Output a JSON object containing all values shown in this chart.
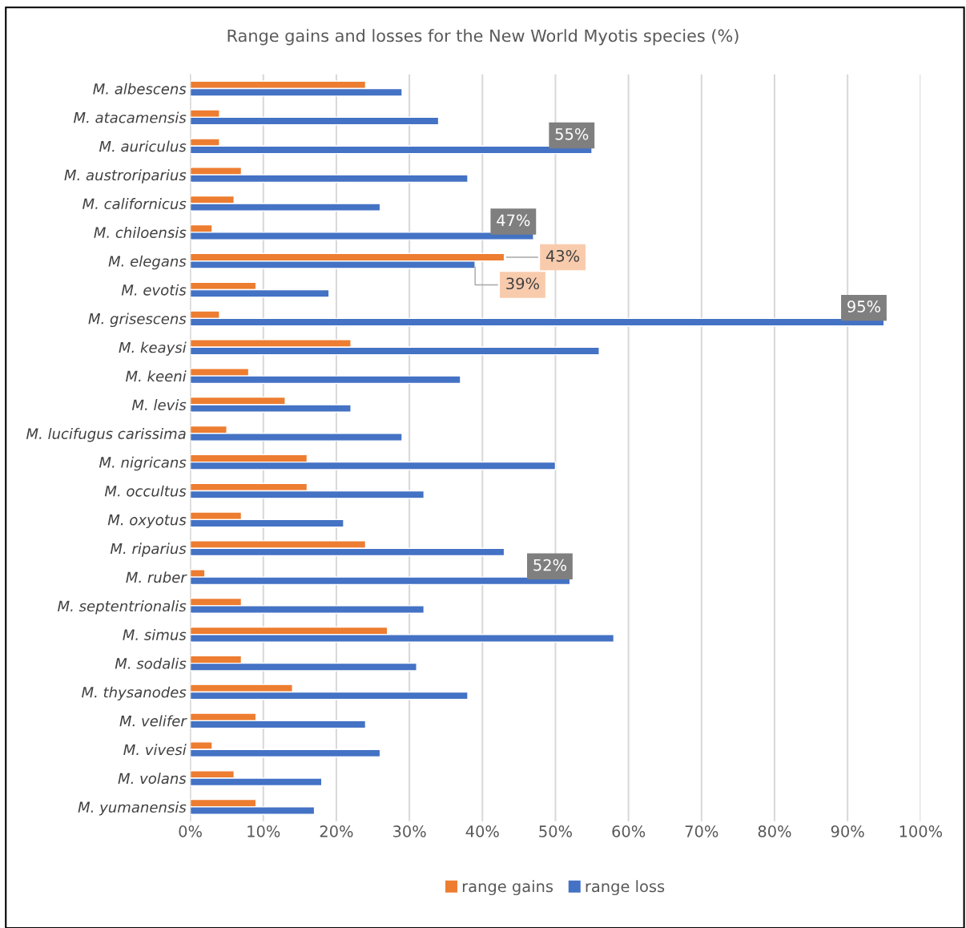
{
  "chart_data": {
    "type": "bar",
    "orientation": "horizontal",
    "title": "Range gains and losses for the New World Myotis species (%)",
    "categories": [
      "M. albescens",
      "M. atacamensis",
      "M. auriculus",
      "M. austroriparius",
      "M. californicus",
      "M. chiloensis",
      "M. elegans",
      "M. evotis",
      "M. grisescens",
      "M. keaysi",
      "M. keeni",
      "M. levis",
      "M. lucifugus carissima",
      "M. nigricans",
      "M. occultus",
      "M. oxyotus",
      "M. riparius",
      "M. ruber",
      "M. septentrionalis",
      "M. simus",
      "M. sodalis",
      "M. thysanodes",
      "M. velifer",
      "M. vivesi",
      "M. volans",
      "M. yumanensis"
    ],
    "series": [
      {
        "name": "range gains",
        "color": "#ed7d31",
        "values": [
          24,
          4,
          4,
          7,
          6,
          3,
          43,
          9,
          4,
          22,
          8,
          13,
          5,
          16,
          16,
          7,
          24,
          2,
          7,
          27,
          7,
          14,
          9,
          3,
          6,
          9
        ],
        "value_labels": [
          null,
          null,
          null,
          null,
          null,
          null,
          "43%",
          null,
          null,
          null,
          null,
          null,
          null,
          null,
          null,
          null,
          null,
          null,
          null,
          null,
          null,
          null,
          null,
          null,
          null,
          null
        ]
      },
      {
        "name": "range loss",
        "color": "#4472c4",
        "values": [
          29,
          34,
          55,
          38,
          26,
          47,
          39,
          19,
          95,
          56,
          37,
          22,
          29,
          50,
          32,
          21,
          43,
          52,
          32,
          58,
          31,
          38,
          24,
          26,
          18,
          17
        ],
        "value_labels": [
          null,
          null,
          "55%",
          null,
          null,
          "47%",
          "39%",
          null,
          "95%",
          null,
          null,
          null,
          null,
          null,
          null,
          null,
          null,
          "52%",
          null,
          null,
          null,
          null,
          null,
          null,
          null,
          null
        ]
      }
    ],
    "xlim": [
      0,
      100
    ],
    "xticks": [
      {
        "value": 0,
        "label": "0%"
      },
      {
        "value": 10,
        "label": "10%"
      },
      {
        "value": 20,
        "label": "20%"
      },
      {
        "value": 30,
        "label": "30%"
      },
      {
        "value": 40,
        "label": "40%"
      },
      {
        "value": 50,
        "label": "50%"
      },
      {
        "value": 60,
        "label": "60%"
      },
      {
        "value": 70,
        "label": "70%"
      },
      {
        "value": 80,
        "label": "80%"
      },
      {
        "value": 90,
        "label": "90%"
      },
      {
        "value": 100,
        "label": "100%"
      }
    ],
    "grid": "x",
    "legend": "bottom"
  }
}
